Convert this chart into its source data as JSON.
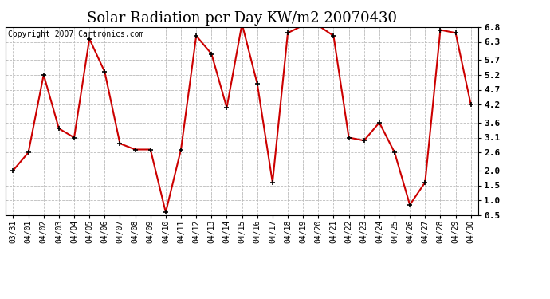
{
  "title": "Solar Radiation per Day KW/m2 20070430",
  "copyright": "Copyright 2007 Cartronics.com",
  "dates": [
    "03/31",
    "04/01",
    "04/02",
    "04/03",
    "04/04",
    "04/05",
    "04/06",
    "04/07",
    "04/08",
    "04/09",
    "04/10",
    "04/11",
    "04/12",
    "04/13",
    "04/14",
    "04/15",
    "04/16",
    "04/17",
    "04/18",
    "04/19",
    "04/20",
    "04/21",
    "04/22",
    "04/23",
    "04/24",
    "04/25",
    "04/26",
    "04/27",
    "04/28",
    "04/29",
    "04/30"
  ],
  "values": [
    2.0,
    2.6,
    5.2,
    3.4,
    3.1,
    6.4,
    5.3,
    2.9,
    2.7,
    2.7,
    0.6,
    2.7,
    6.5,
    5.9,
    4.1,
    6.9,
    4.9,
    1.6,
    6.6,
    6.85,
    6.85,
    6.5,
    3.1,
    3.0,
    3.6,
    2.6,
    0.85,
    1.6,
    6.7,
    6.6,
    4.2
  ],
  "line_color": "#cc0000",
  "marker_color": "#000000",
  "bg_color": "#ffffff",
  "grid_color": "#bbbbbb",
  "ylim": [
    0.5,
    6.8
  ],
  "yticks": [
    0.5,
    1.0,
    1.5,
    2.0,
    2.6,
    3.1,
    3.6,
    4.2,
    4.7,
    5.2,
    5.7,
    6.3,
    6.8
  ],
  "title_fontsize": 13,
  "copyright_fontsize": 7,
  "tick_fontsize": 7,
  "ytick_fontsize": 8
}
